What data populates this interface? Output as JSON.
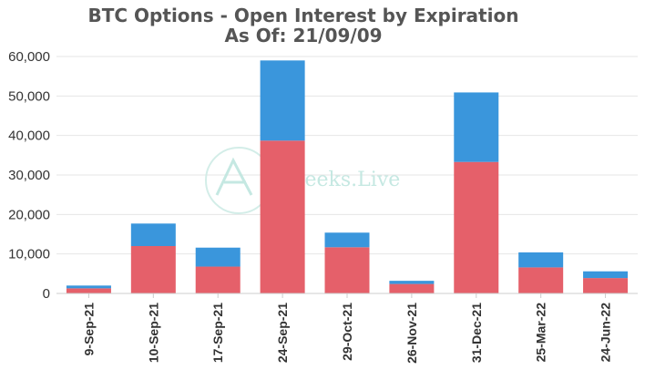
{
  "chart_data": {
    "type": "bar",
    "stacked": true,
    "title": "BTC Options - Open Interest by Expiration",
    "subtitle": "As Of: 21/09/09",
    "xlabel": "",
    "ylabel": "",
    "ylim": [
      0,
      60000
    ],
    "yticks": [
      0,
      10000,
      20000,
      30000,
      40000,
      50000,
      60000
    ],
    "ytick_labels": [
      "0",
      "10,000",
      "20,000",
      "30,000",
      "40,000",
      "50,000",
      "60,000"
    ],
    "grid": true,
    "categories": [
      "9-Sep-21",
      "10-Sep-21",
      "17-Sep-21",
      "24-Sep-21",
      "29-Oct-21",
      "26-Nov-21",
      "31-Dec-21",
      "25-Mar-22",
      "24-Jun-22"
    ],
    "series": [
      {
        "values": [
          1300,
          12000,
          6800,
          38700,
          11700,
          2400,
          33300,
          6600,
          3900
        ],
        "color": "#e5606a"
      },
      {
        "values": [
          700,
          5700,
          4800,
          20300,
          3700,
          800,
          17600,
          3800,
          1700
        ],
        "color": "#3a96dc"
      }
    ]
  },
  "watermark": {
    "text": "reeks.Live",
    "color": "#bfe6df"
  }
}
